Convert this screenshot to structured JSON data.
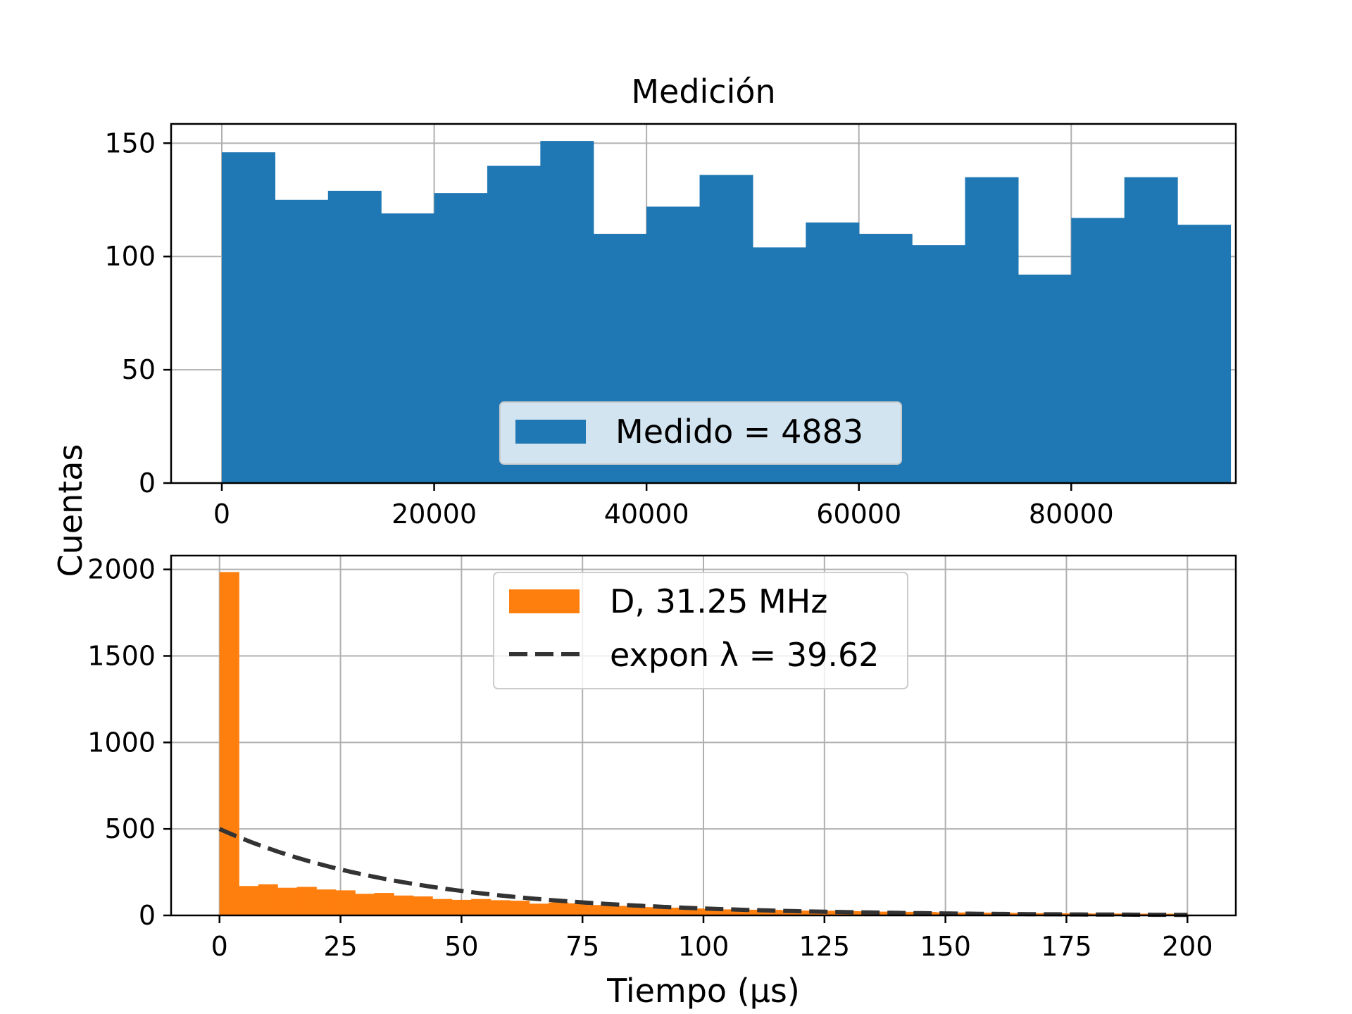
{
  "figure": {
    "ylabel": "Cuentas"
  },
  "chart_data": [
    {
      "type": "bar",
      "title": "Medición",
      "xlabel": "",
      "ylabel": "",
      "xlim": [
        -4775,
        95500
      ],
      "ylim": [
        0,
        158.5
      ],
      "xticks": [
        0,
        20000,
        40000,
        60000,
        80000
      ],
      "xtick_labels": [
        "0",
        "20000",
        "40000",
        "60000",
        "80000"
      ],
      "yticks": [
        0,
        50,
        100,
        150
      ],
      "ytick_labels": [
        "0",
        "50",
        "100",
        "150"
      ],
      "grid": true,
      "legend_loc": "lower center",
      "color": "#1f77b4",
      "bin_edges": [
        0,
        5000,
        10000,
        15000,
        20000,
        25000,
        30000,
        35000,
        40000,
        45000,
        50000,
        55000,
        60000,
        65000,
        70000,
        75000,
        80000,
        85000,
        90000,
        95000
      ],
      "values": [
        146,
        125,
        129,
        119,
        128,
        140,
        151,
        110,
        122,
        136,
        104,
        115,
        110,
        105,
        135,
        92,
        117,
        135,
        114
      ],
      "series": [
        {
          "name": "Medido = 4883",
          "kind": "hist"
        }
      ]
    },
    {
      "type": "bar",
      "title": "",
      "xlabel": "Tiempo (μs)",
      "ylabel": "",
      "xlim": [
        -10,
        210
      ],
      "ylim": [
        0,
        2080
      ],
      "xticks": [
        0,
        25,
        50,
        75,
        100,
        125,
        150,
        175,
        200
      ],
      "xtick_labels": [
        "0",
        "25",
        "50",
        "75",
        "100",
        "125",
        "150",
        "175",
        "200"
      ],
      "yticks": [
        0,
        500,
        1000,
        1500,
        2000
      ],
      "ytick_labels": [
        "0",
        "500",
        "1000",
        "1500",
        "2000"
      ],
      "grid": true,
      "legend_loc": "upper center",
      "color": "#ff7f0e",
      "bin_width": 4,
      "values": [
        1985,
        170,
        180,
        160,
        165,
        150,
        145,
        125,
        130,
        115,
        110,
        95,
        90,
        95,
        88,
        85,
        68,
        75,
        70,
        60,
        55,
        50,
        48,
        45,
        40,
        38,
        35,
        33,
        32,
        30,
        28,
        27,
        25,
        24,
        22,
        21,
        20,
        18,
        17,
        16,
        15,
        14,
        13,
        12,
        12,
        11,
        11,
        10,
        10,
        10
      ],
      "fit": {
        "name": "expon λ = 39.62",
        "lambda": 39.62,
        "amplitude": 500,
        "color": "#333333",
        "dashed": true
      },
      "series": [
        {
          "name": "D, 31.25 MHz",
          "kind": "hist"
        },
        {
          "name": "expon λ = 39.62",
          "kind": "line"
        }
      ]
    }
  ]
}
